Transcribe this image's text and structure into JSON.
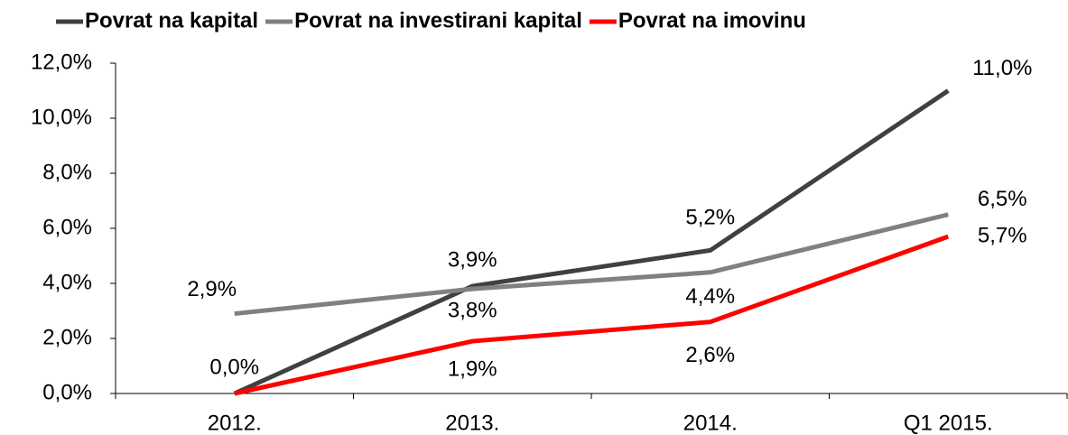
{
  "chart_data": {
    "type": "line",
    "categories": [
      "2012.",
      "2013.",
      "2014.",
      "Q1 2015."
    ],
    "series": [
      {
        "name": "Povrat na kapital",
        "color": "#404040",
        "values": [
          0,
          3.9,
          5.2,
          11.0
        ],
        "value_labels": [
          "0,0%",
          "3,9%",
          "5,2%",
          "11,0%"
        ]
      },
      {
        "name": "Povrat na investirani kapital",
        "color": "#808080",
        "values": [
          2.9,
          3.8,
          4.4,
          6.5
        ],
        "value_labels": [
          "2,9%",
          "3,8%",
          "4,4%",
          "6,5%"
        ]
      },
      {
        "name": "Povrat na imovinu",
        "color": "#ff0000",
        "values": [
          0,
          1.9,
          2.6,
          5.7
        ],
        "value_labels": [
          null,
          "1,9%",
          "2,6%",
          "5,7%"
        ]
      }
    ],
    "ylim": [
      0,
      12
    ],
    "yticks": [
      {
        "value": 0,
        "label": "0,0%"
      },
      {
        "value": 2,
        "label": "2,0%"
      },
      {
        "value": 4,
        "label": "4,0%"
      },
      {
        "value": 6,
        "label": "6,0%"
      },
      {
        "value": 8,
        "label": "8,0%"
      },
      {
        "value": 10,
        "label": "10,0%"
      },
      {
        "value": 12,
        "label": "12,0%"
      }
    ],
    "legend": "top"
  }
}
